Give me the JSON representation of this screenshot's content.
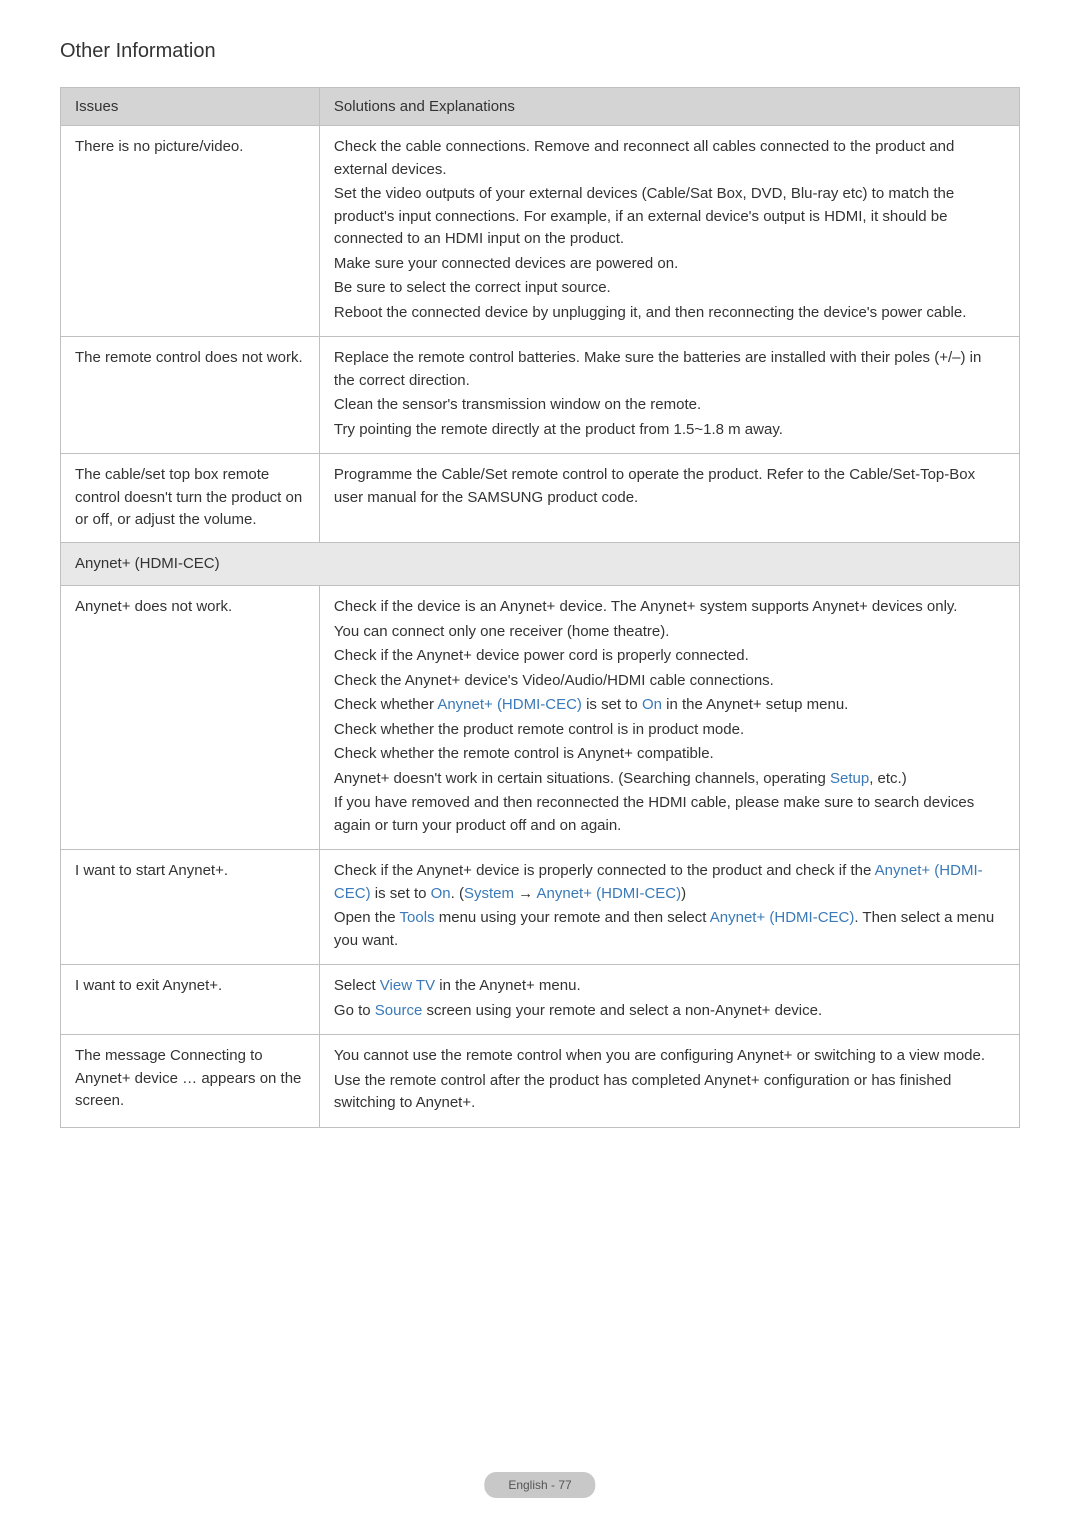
{
  "page_title": "Other Information",
  "table": {
    "headers": {
      "issues": "Issues",
      "solutions": "Solutions and Explanations"
    },
    "rows": [
      {
        "issue": "There is no picture/video.",
        "solution_lines": [
          {
            "parts": [
              {
                "t": "Check the cable connections. Remove and reconnect all cables connected to the product and external devices."
              }
            ]
          },
          {
            "parts": [
              {
                "t": "Set the video outputs of your external devices (Cable/Sat Box, DVD, Blu-ray etc) to match the product's input connections. For example, if an external device's output is HDMI, it should be connected to an HDMI input on the product."
              }
            ]
          },
          {
            "parts": [
              {
                "t": "Make sure your connected devices are powered on."
              }
            ]
          },
          {
            "parts": [
              {
                "t": "Be sure to select the correct input source."
              }
            ]
          },
          {
            "parts": [
              {
                "t": "Reboot the connected device by unplugging it, and then reconnecting the device's power cable."
              }
            ]
          }
        ]
      },
      {
        "issue": "The remote control does not work.",
        "solution_lines": [
          {
            "parts": [
              {
                "t": "Replace the remote control batteries. Make sure the batteries are installed with their poles (+/–) in the correct direction."
              }
            ]
          },
          {
            "parts": [
              {
                "t": "Clean the sensor's transmission window on the remote."
              }
            ]
          },
          {
            "parts": [
              {
                "t": "Try pointing the remote directly at the product from 1.5~1.8 m away."
              }
            ]
          }
        ]
      },
      {
        "issue": "The cable/set top box remote control doesn't turn the product on or off, or adjust the volume.",
        "solution_lines": [
          {
            "parts": [
              {
                "t": "Programme the Cable/Set remote control to operate the product. Refer to the Cable/Set-Top-Box user manual for the SAMSUNG product code."
              }
            ]
          }
        ]
      },
      {
        "section": true,
        "issue": "Anynet+ (HDMI-CEC)"
      },
      {
        "issue": "Anynet+ does not work.",
        "solution_lines": [
          {
            "parts": [
              {
                "t": "Check if the device is an Anynet+ device. The Anynet+ system supports Anynet+ devices only."
              }
            ]
          },
          {
            "parts": [
              {
                "t": "You can connect only one receiver (home theatre)."
              }
            ]
          },
          {
            "parts": [
              {
                "t": "Check if the Anynet+ device power cord is properly connected."
              }
            ]
          },
          {
            "parts": [
              {
                "t": "Check the Anynet+ device's Video/Audio/HDMI cable connections."
              }
            ]
          },
          {
            "parts": [
              {
                "t": "Check whether "
              },
              {
                "t": "Anynet+ (HDMI-CEC)",
                "link": true
              },
              {
                "t": " is set to "
              },
              {
                "t": "On",
                "link": true
              },
              {
                "t": " in the Anynet+ setup menu."
              }
            ]
          },
          {
            "parts": [
              {
                "t": "Check whether the product remote control is in product mode."
              }
            ]
          },
          {
            "parts": [
              {
                "t": "Check whether the remote control is Anynet+ compatible."
              }
            ]
          },
          {
            "parts": [
              {
                "t": "Anynet+ doesn't work in certain situations. (Searching channels, operating "
              },
              {
                "t": "Setup",
                "link": true
              },
              {
                "t": ", etc.)"
              }
            ]
          },
          {
            "parts": [
              {
                "t": "If you have removed and then reconnected the HDMI cable, please make sure to search devices again or turn your product off and on again."
              }
            ]
          }
        ]
      },
      {
        "issue": "I want to start Anynet+.",
        "solution_lines": [
          {
            "parts": [
              {
                "t": "Check if the Anynet+ device is properly connected to the product and check if the "
              },
              {
                "t": "Anynet+ (HDMI-CEC)",
                "link": true
              },
              {
                "t": " is set to "
              },
              {
                "t": "On",
                "link": true
              },
              {
                "t": ". ("
              },
              {
                "t": "System",
                "link": true
              },
              {
                "t": " → "
              },
              {
                "t": "Anynet+ (HDMI-CEC)",
                "link": true
              },
              {
                "t": ")"
              }
            ]
          },
          {
            "parts": [
              {
                "t": "Open the "
              },
              {
                "t": "Tools",
                "link": true
              },
              {
                "t": " menu using your remote and then select "
              },
              {
                "t": "Anynet+ (HDMI-CEC)",
                "link": true
              },
              {
                "t": ". Then select a menu you want."
              }
            ]
          }
        ]
      },
      {
        "issue": "I want to exit Anynet+.",
        "solution_lines": [
          {
            "parts": [
              {
                "t": "Select "
              },
              {
                "t": "View TV",
                "link": true
              },
              {
                "t": " in the Anynet+ menu."
              }
            ]
          },
          {
            "parts": [
              {
                "t": "Go to "
              },
              {
                "t": "Source",
                "link": true
              },
              {
                "t": " screen using your remote and select a non-Anynet+ device."
              }
            ]
          }
        ]
      },
      {
        "issue": "The message Connecting to Anynet+ device … appears on the screen.",
        "solution_lines": [
          {
            "parts": [
              {
                "t": "You cannot use the remote control when you are configuring Anynet+ or switching to a view mode."
              }
            ]
          },
          {
            "parts": [
              {
                "t": "Use the remote control after the product has completed Anynet+ configuration or has finished switching to Anynet+."
              }
            ]
          }
        ]
      }
    ]
  },
  "footer": {
    "page_label": "English - 77"
  },
  "colors": {
    "header_bg": "#d4d4d4",
    "section_bg": "#e8e8e8",
    "border": "#c0c0c0",
    "text": "#333333",
    "link": "#3a7ab8",
    "badge_bg": "#c8c8c8",
    "badge_text": "#555555"
  }
}
